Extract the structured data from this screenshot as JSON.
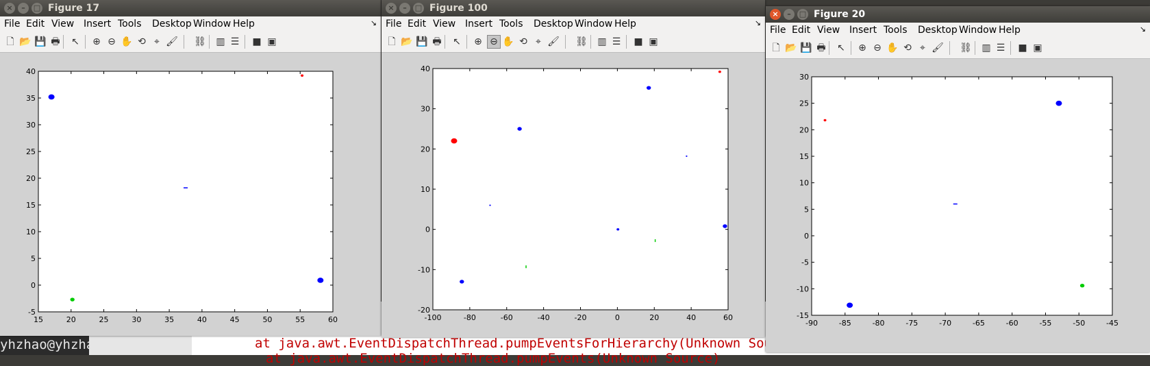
{
  "background": {
    "terminal_prompt": "yhzhao@yhzha",
    "terminal_line_1": "at java.awt.EventDispatchThread.pumpEventsForHierarchy(Unknown Sourc",
    "terminal_line_2": "at java.awt.EventDispatchThread.pumpEvents(Unknown Source)"
  },
  "menu": [
    "File",
    "Edit",
    "View",
    "Insert",
    "Tools",
    "Desktop",
    "Window",
    "Help"
  ],
  "window_buttons": {
    "close": "×",
    "minimize": "–",
    "maximize": "□"
  },
  "toolbar_icons": [
    "new-figure-icon",
    "open-file-icon",
    "save-icon",
    "print-icon",
    "select-arrow-icon",
    "zoom-in-icon",
    "zoom-out-icon",
    "pan-hand-icon",
    "rotate-3d-icon",
    "data-cursor-icon",
    "brush-icon",
    "link-plot-icon",
    "colorbar-icon",
    "legend-icon",
    "hide-plot-tools-icon",
    "show-plot-tools-icon"
  ],
  "colors": {
    "blue": "#0000ff",
    "red": "#ff0000",
    "green": "#00cc00"
  },
  "windows": [
    {
      "title": "Figure 17",
      "active": false,
      "pressed_tool": null,
      "chart_data": {
        "type": "scatter",
        "title": "",
        "xlabel": "",
        "ylabel": "",
        "xlim": [
          15,
          60
        ],
        "ylim": [
          -5,
          40
        ],
        "xticks": [
          15,
          20,
          25,
          30,
          35,
          40,
          45,
          50,
          55,
          60
        ],
        "yticks": [
          -5,
          0,
          5,
          10,
          15,
          20,
          25,
          30,
          35,
          40
        ],
        "clusters": [
          {
            "color": "blue",
            "x": 17.0,
            "y": 35.2,
            "size": "large"
          },
          {
            "color": "red",
            "x": 55.3,
            "y": 39.2,
            "size": "small"
          },
          {
            "color": "blue",
            "x": 37.5,
            "y": 18.2,
            "size": "dash"
          },
          {
            "color": "blue",
            "x": 58.1,
            "y": 0.9,
            "size": "large"
          },
          {
            "color": "green",
            "x": 20.2,
            "y": -2.7,
            "size": "medium"
          }
        ]
      }
    },
    {
      "title": "Figure 100",
      "active": false,
      "pressed_tool": "zoom-out-icon",
      "chart_data": {
        "type": "scatter",
        "title": "",
        "xlabel": "",
        "ylabel": "",
        "xlim": [
          -100,
          60
        ],
        "ylim": [
          -20,
          40
        ],
        "xticks": [
          -100,
          -80,
          -60,
          -40,
          -20,
          0,
          20,
          40,
          60
        ],
        "yticks": [
          -20,
          -10,
          0,
          10,
          20,
          30,
          40
        ],
        "clusters": [
          {
            "color": "red",
            "x": -88.5,
            "y": 22.0,
            "size": "large"
          },
          {
            "color": "red",
            "x": 55.5,
            "y": 39.2,
            "size": "small"
          },
          {
            "color": "blue",
            "x": 17.0,
            "y": 35.2,
            "size": "medium"
          },
          {
            "color": "blue",
            "x": -53.0,
            "y": 25.0,
            "size": "medium"
          },
          {
            "color": "blue",
            "x": 37.5,
            "y": 18.2,
            "size": "dot"
          },
          {
            "color": "blue",
            "x": -69.0,
            "y": 6.0,
            "size": "dot"
          },
          {
            "color": "blue",
            "x": 0.3,
            "y": 0.0,
            "size": "small"
          },
          {
            "color": "blue",
            "x": 58.3,
            "y": 0.8,
            "size": "medium"
          },
          {
            "color": "green",
            "x": 20.5,
            "y": -2.8,
            "size": "dash-v"
          },
          {
            "color": "green",
            "x": -49.5,
            "y": -9.3,
            "size": "dash-v"
          },
          {
            "color": "blue",
            "x": -84.3,
            "y": -13.0,
            "size": "medium"
          }
        ]
      }
    },
    {
      "title": "Figure 20",
      "active": true,
      "pressed_tool": null,
      "chart_data": {
        "type": "scatter",
        "title": "",
        "xlabel": "",
        "ylabel": "",
        "xlim": [
          -90,
          -45
        ],
        "ylim": [
          -15,
          30
        ],
        "xticks": [
          -90,
          -85,
          -80,
          -75,
          -70,
          -65,
          -60,
          -55,
          -50,
          -45
        ],
        "yticks": [
          -15,
          -10,
          -5,
          0,
          5,
          10,
          15,
          20,
          25,
          30
        ],
        "clusters": [
          {
            "color": "red",
            "x": -88.0,
            "y": 21.8,
            "size": "small"
          },
          {
            "color": "blue",
            "x": -53.0,
            "y": 25.0,
            "size": "large"
          },
          {
            "color": "blue",
            "x": -68.5,
            "y": 6.0,
            "size": "dash"
          },
          {
            "color": "green",
            "x": -49.5,
            "y": -9.4,
            "size": "medium"
          },
          {
            "color": "blue",
            "x": -84.3,
            "y": -13.1,
            "size": "large"
          }
        ]
      }
    }
  ]
}
